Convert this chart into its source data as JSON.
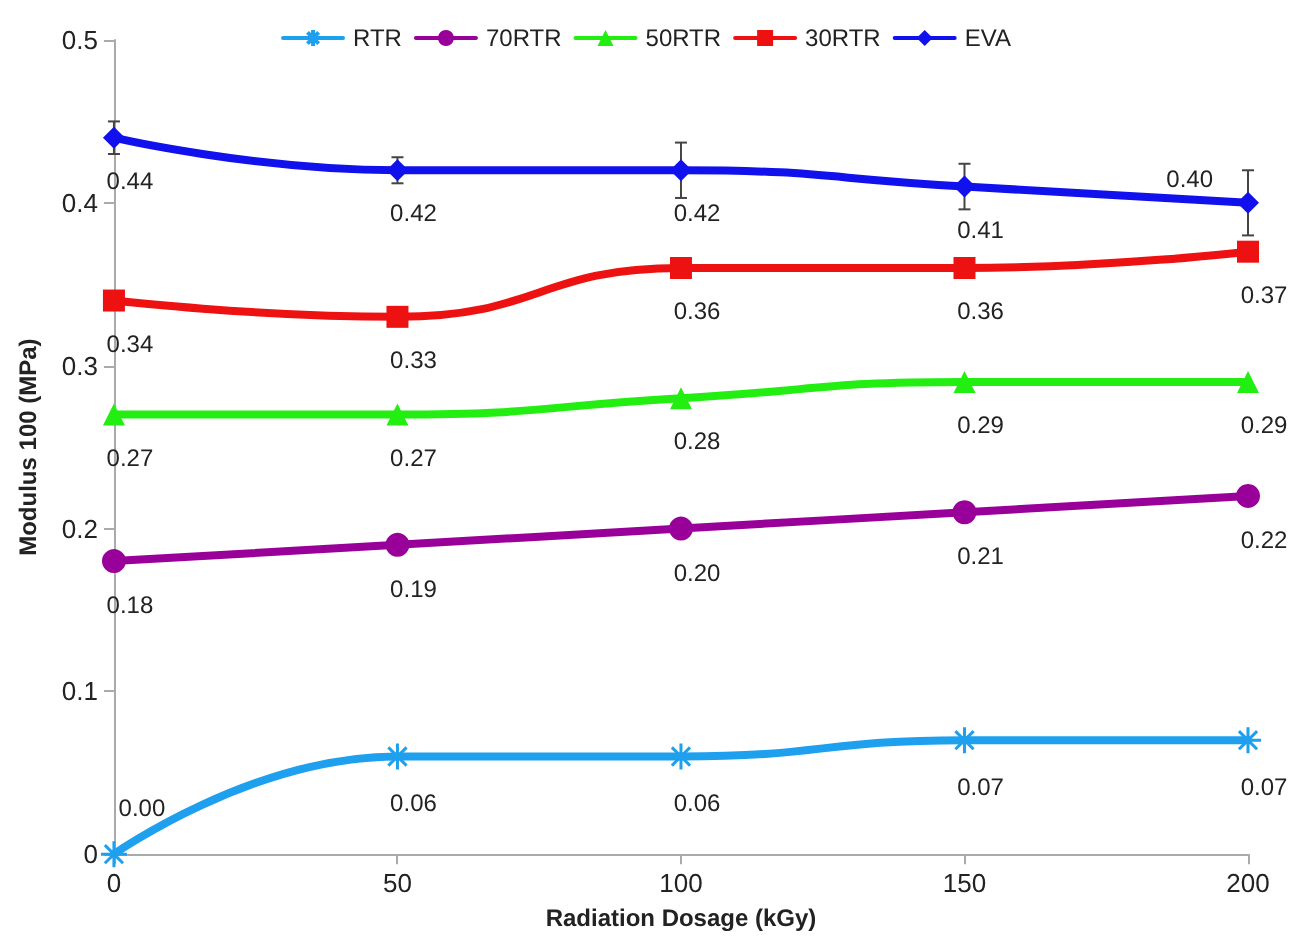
{
  "chart_data": {
    "type": "line",
    "xlabel": "Radiation Dosage (kGy)",
    "ylabel": "Modulus 100 (MPa)",
    "x": [
      0,
      50,
      100,
      150,
      200
    ],
    "series": [
      {
        "name": "RTR",
        "color": "#1ea0ef",
        "marker": "cross",
        "values": [
          0.0,
          0.06,
          0.06,
          0.07,
          0.07
        ],
        "value_labels": [
          "0.00",
          "0.06",
          "0.06",
          "0.07",
          "0.07"
        ]
      },
      {
        "name": "70RTR",
        "color": "#990099",
        "marker": "circle",
        "values": [
          0.18,
          0.19,
          0.2,
          0.21,
          0.22
        ],
        "value_labels": [
          "0.18",
          "0.19",
          "0.20",
          "0.21",
          "0.22"
        ]
      },
      {
        "name": "50RTR",
        "color": "#22ee11",
        "marker": "triangle",
        "values": [
          0.27,
          0.27,
          0.28,
          0.29,
          0.29
        ],
        "value_labels": [
          "0.27",
          "0.27",
          "0.28",
          "0.29",
          "0.29"
        ]
      },
      {
        "name": "30RTR",
        "color": "#ee1111",
        "marker": "square",
        "values": [
          0.34,
          0.33,
          0.36,
          0.36,
          0.37
        ],
        "value_labels": [
          "0.34",
          "0.33",
          "0.36",
          "0.36",
          "0.37"
        ]
      },
      {
        "name": "EVA",
        "color": "#1111ee",
        "marker": "diamond",
        "values": [
          0.44,
          0.42,
          0.42,
          0.41,
          0.4
        ],
        "value_labels": [
          "0.44",
          "0.42",
          "0.42",
          "0.41",
          "0.40"
        ],
        "errors": [
          0.01,
          0.008,
          0.017,
          0.014,
          0.02
        ]
      }
    ],
    "xlim": [
      0,
      200
    ],
    "xticks": [
      0,
      50,
      100,
      150,
      200
    ],
    "ylim": [
      0,
      0.5
    ],
    "yticks": [
      0,
      0.1,
      0.2,
      0.3,
      0.4,
      0.5
    ],
    "grid": false,
    "legend": "top",
    "line_style": "solid"
  }
}
